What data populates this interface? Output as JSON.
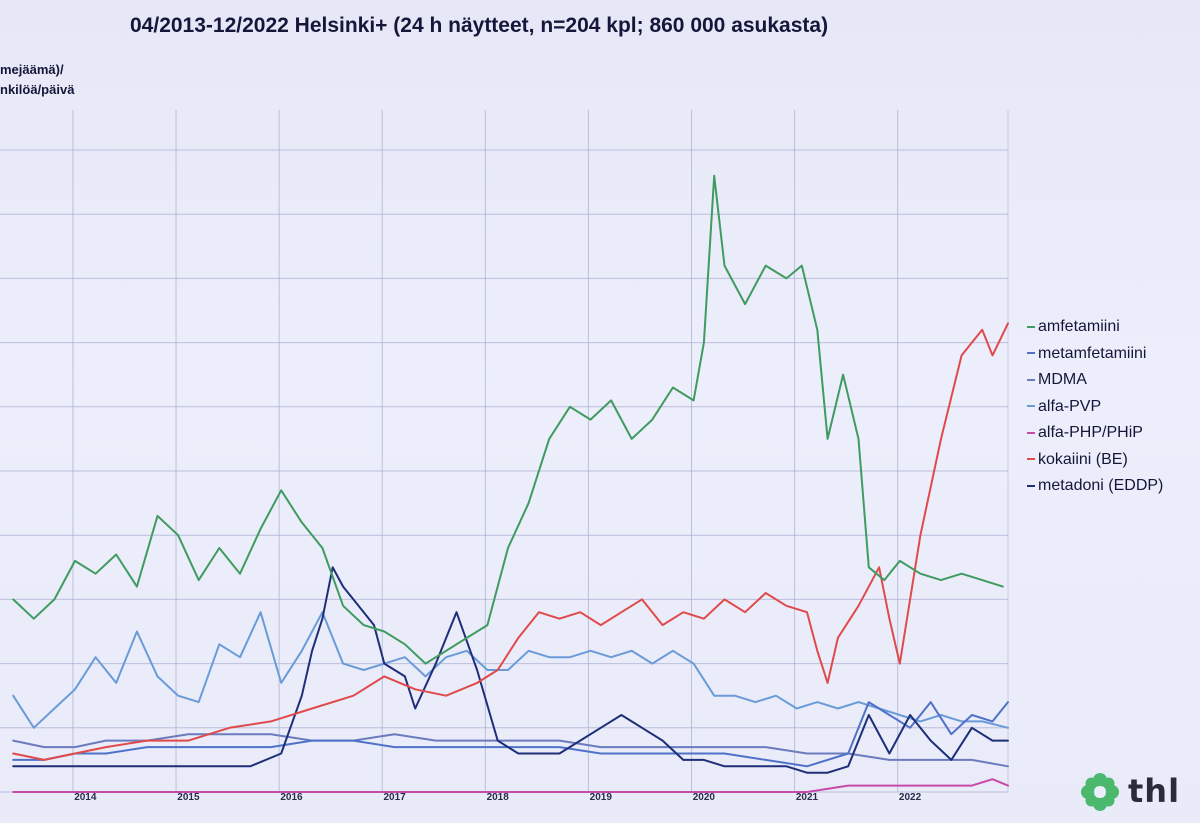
{
  "slide": {
    "title": "04/2013-12/2022 Helsinki+ (24 h näytteet, n=204 kpl; 860 000 asukasta)",
    "ylabel_line1": "mejäämä)/",
    "ylabel_line2": "nkilöä/päivä",
    "logo_text": "thl"
  },
  "colors": {
    "grid": "#a8acd0",
    "amfetamiini": "#3f9b5f",
    "metamfetamiini": "#4f72c8",
    "MDMA": "#6b7bbe",
    "alfa-PVP": "#6a9bd8",
    "alfa-PHP/PHiP": "#c84aa8",
    "kokaiini": "#e04a4a",
    "metadoni": "#1e2e78",
    "logo": "#4bb86e"
  },
  "chart_data": {
    "type": "line",
    "xlim": [
      2013.25,
      2022.95
    ],
    "x_ticks": [
      {
        "year": 2014,
        "label": "2014"
      },
      {
        "year": 2015,
        "label": "2015"
      },
      {
        "year": 2016,
        "label": "2016"
      },
      {
        "year": 2017,
        "label": "2017"
      },
      {
        "year": 2018,
        "label": "2018"
      },
      {
        "year": 2019,
        "label": "2019"
      },
      {
        "year": 2020,
        "label": "2020"
      },
      {
        "year": 2021,
        "label": "2021"
      },
      {
        "year": 2022,
        "label": "2022"
      }
    ],
    "grid": true,
    "legend_position": "right",
    "ylim": [
      0,
      100
    ],
    "series": [
      {
        "name": "amfetamiini",
        "color": "#3f9b5f",
        "points": [
          [
            2013.3,
            30
          ],
          [
            2013.5,
            27
          ],
          [
            2013.7,
            30
          ],
          [
            2013.9,
            36
          ],
          [
            2014.1,
            34
          ],
          [
            2014.3,
            37
          ],
          [
            2014.5,
            32
          ],
          [
            2014.7,
            43
          ],
          [
            2014.9,
            40
          ],
          [
            2015.1,
            33
          ],
          [
            2015.3,
            38
          ],
          [
            2015.5,
            34
          ],
          [
            2015.7,
            41
          ],
          [
            2015.9,
            47
          ],
          [
            2016.1,
            42
          ],
          [
            2016.3,
            38
          ],
          [
            2016.5,
            29
          ],
          [
            2016.7,
            26
          ],
          [
            2016.9,
            25
          ],
          [
            2017.1,
            23
          ],
          [
            2017.3,
            20
          ],
          [
            2017.5,
            22
          ],
          [
            2017.7,
            24
          ],
          [
            2017.9,
            26
          ],
          [
            2018.1,
            38
          ],
          [
            2018.3,
            45
          ],
          [
            2018.5,
            55
          ],
          [
            2018.7,
            60
          ],
          [
            2018.9,
            58
          ],
          [
            2019.1,
            61
          ],
          [
            2019.3,
            55
          ],
          [
            2019.5,
            58
          ],
          [
            2019.7,
            63
          ],
          [
            2019.9,
            61
          ],
          [
            2020.0,
            70
          ],
          [
            2020.1,
            96
          ],
          [
            2020.2,
            82
          ],
          [
            2020.4,
            76
          ],
          [
            2020.6,
            82
          ],
          [
            2020.8,
            80
          ],
          [
            2020.95,
            82
          ],
          [
            2021.1,
            72
          ],
          [
            2021.2,
            55
          ],
          [
            2021.35,
            65
          ],
          [
            2021.5,
            55
          ],
          [
            2021.6,
            35
          ],
          [
            2021.75,
            33
          ],
          [
            2021.9,
            36
          ],
          [
            2022.1,
            34
          ],
          [
            2022.3,
            33
          ],
          [
            2022.5,
            34
          ],
          [
            2022.7,
            33
          ],
          [
            2022.9,
            32
          ]
        ]
      },
      {
        "name": "metamfetamiini",
        "color": "#4f72c8",
        "points": [
          [
            2013.3,
            5
          ],
          [
            2013.6,
            5
          ],
          [
            2013.9,
            6
          ],
          [
            2014.2,
            6
          ],
          [
            2014.6,
            7
          ],
          [
            2015.0,
            7
          ],
          [
            2015.4,
            7
          ],
          [
            2015.8,
            7
          ],
          [
            2016.2,
            8
          ],
          [
            2016.6,
            8
          ],
          [
            2017.0,
            7
          ],
          [
            2017.4,
            7
          ],
          [
            2017.8,
            7
          ],
          [
            2018.2,
            7
          ],
          [
            2018.6,
            7
          ],
          [
            2019.0,
            6
          ],
          [
            2019.4,
            6
          ],
          [
            2019.8,
            6
          ],
          [
            2020.2,
            6
          ],
          [
            2020.6,
            5
          ],
          [
            2021.0,
            4
          ],
          [
            2021.4,
            6
          ],
          [
            2021.6,
            14
          ],
          [
            2021.8,
            12
          ],
          [
            2022.0,
            10
          ],
          [
            2022.2,
            14
          ],
          [
            2022.4,
            9
          ],
          [
            2022.6,
            12
          ],
          [
            2022.8,
            11
          ],
          [
            2022.95,
            14
          ]
        ]
      },
      {
        "name": "MDMA",
        "color": "#6b7bbe",
        "points": [
          [
            2013.3,
            8
          ],
          [
            2013.6,
            7
          ],
          [
            2013.9,
            7
          ],
          [
            2014.2,
            8
          ],
          [
            2014.6,
            8
          ],
          [
            2015.0,
            9
          ],
          [
            2015.4,
            9
          ],
          [
            2015.8,
            9
          ],
          [
            2016.2,
            8
          ],
          [
            2016.6,
            8
          ],
          [
            2017.0,
            9
          ],
          [
            2017.4,
            8
          ],
          [
            2017.8,
            8
          ],
          [
            2018.2,
            8
          ],
          [
            2018.6,
            8
          ],
          [
            2019.0,
            7
          ],
          [
            2019.4,
            7
          ],
          [
            2019.8,
            7
          ],
          [
            2020.2,
            7
          ],
          [
            2020.6,
            7
          ],
          [
            2021.0,
            6
          ],
          [
            2021.4,
            6
          ],
          [
            2021.8,
            5
          ],
          [
            2022.2,
            5
          ],
          [
            2022.6,
            5
          ],
          [
            2022.95,
            4
          ]
        ]
      },
      {
        "name": "alfa-PVP",
        "color": "#6a9bd8",
        "points": [
          [
            2013.3,
            15
          ],
          [
            2013.5,
            10
          ],
          [
            2013.7,
            13
          ],
          [
            2013.9,
            16
          ],
          [
            2014.1,
            21
          ],
          [
            2014.3,
            17
          ],
          [
            2014.5,
            25
          ],
          [
            2014.7,
            18
          ],
          [
            2014.9,
            15
          ],
          [
            2015.1,
            14
          ],
          [
            2015.3,
            23
          ],
          [
            2015.5,
            21
          ],
          [
            2015.7,
            28
          ],
          [
            2015.9,
            17
          ],
          [
            2016.1,
            22
          ],
          [
            2016.3,
            28
          ],
          [
            2016.5,
            20
          ],
          [
            2016.7,
            19
          ],
          [
            2016.9,
            20
          ],
          [
            2017.1,
            21
          ],
          [
            2017.3,
            18
          ],
          [
            2017.5,
            21
          ],
          [
            2017.7,
            22
          ],
          [
            2017.9,
            19
          ],
          [
            2018.1,
            19
          ],
          [
            2018.3,
            22
          ],
          [
            2018.5,
            21
          ],
          [
            2018.7,
            21
          ],
          [
            2018.9,
            22
          ],
          [
            2019.1,
            21
          ],
          [
            2019.3,
            22
          ],
          [
            2019.5,
            20
          ],
          [
            2019.7,
            22
          ],
          [
            2019.9,
            20
          ],
          [
            2020.1,
            15
          ],
          [
            2020.3,
            15
          ],
          [
            2020.5,
            14
          ],
          [
            2020.7,
            15
          ],
          [
            2020.9,
            13
          ],
          [
            2021.1,
            14
          ],
          [
            2021.3,
            13
          ],
          [
            2021.5,
            14
          ],
          [
            2021.7,
            13
          ],
          [
            2021.9,
            12
          ],
          [
            2022.1,
            11
          ],
          [
            2022.3,
            12
          ],
          [
            2022.5,
            11
          ],
          [
            2022.7,
            11
          ],
          [
            2022.95,
            10
          ]
        ]
      },
      {
        "name": "alfa-PHP/PHiP",
        "color": "#c84aa8",
        "points": [
          [
            2013.3,
            0
          ],
          [
            2020.0,
            0
          ],
          [
            2021.0,
            0
          ],
          [
            2021.4,
            1
          ],
          [
            2021.6,
            1
          ],
          [
            2021.8,
            1
          ],
          [
            2022.0,
            1
          ],
          [
            2022.2,
            1
          ],
          [
            2022.4,
            1
          ],
          [
            2022.6,
            1
          ],
          [
            2022.8,
            2
          ],
          [
            2022.95,
            1
          ]
        ]
      },
      {
        "name": "kokaiini (BE)",
        "color": "#e04a4a",
        "points": [
          [
            2013.3,
            6
          ],
          [
            2013.6,
            5
          ],
          [
            2013.9,
            6
          ],
          [
            2014.2,
            7
          ],
          [
            2014.6,
            8
          ],
          [
            2015.0,
            8
          ],
          [
            2015.4,
            10
          ],
          [
            2015.8,
            11
          ],
          [
            2016.2,
            13
          ],
          [
            2016.6,
            15
          ],
          [
            2016.9,
            18
          ],
          [
            2017.2,
            16
          ],
          [
            2017.5,
            15
          ],
          [
            2017.8,
            17
          ],
          [
            2018.0,
            19
          ],
          [
            2018.2,
            24
          ],
          [
            2018.4,
            28
          ],
          [
            2018.6,
            27
          ],
          [
            2018.8,
            28
          ],
          [
            2019.0,
            26
          ],
          [
            2019.2,
            28
          ],
          [
            2019.4,
            30
          ],
          [
            2019.6,
            26
          ],
          [
            2019.8,
            28
          ],
          [
            2020.0,
            27
          ],
          [
            2020.2,
            30
          ],
          [
            2020.4,
            28
          ],
          [
            2020.6,
            31
          ],
          [
            2020.8,
            29
          ],
          [
            2021.0,
            28
          ],
          [
            2021.1,
            22
          ],
          [
            2021.2,
            17
          ],
          [
            2021.3,
            24
          ],
          [
            2021.5,
            29
          ],
          [
            2021.7,
            35
          ],
          [
            2021.8,
            27
          ],
          [
            2021.9,
            20
          ],
          [
            2022.0,
            30
          ],
          [
            2022.1,
            40
          ],
          [
            2022.3,
            55
          ],
          [
            2022.5,
            68
          ],
          [
            2022.7,
            72
          ],
          [
            2022.8,
            68
          ],
          [
            2022.95,
            73
          ]
        ]
      },
      {
        "name": "metadoni (EDDP)",
        "color": "#1e2e78",
        "points": [
          [
            2013.3,
            4
          ],
          [
            2013.6,
            4
          ],
          [
            2013.9,
            4
          ],
          [
            2014.2,
            4
          ],
          [
            2014.5,
            4
          ],
          [
            2014.9,
            4
          ],
          [
            2015.3,
            4
          ],
          [
            2015.6,
            4
          ],
          [
            2015.9,
            6
          ],
          [
            2016.1,
            15
          ],
          [
            2016.2,
            22
          ],
          [
            2016.3,
            27
          ],
          [
            2016.4,
            35
          ],
          [
            2016.5,
            32
          ],
          [
            2016.6,
            30
          ],
          [
            2016.8,
            26
          ],
          [
            2016.9,
            20
          ],
          [
            2017.1,
            18
          ],
          [
            2017.2,
            13
          ],
          [
            2017.4,
            20
          ],
          [
            2017.6,
            28
          ],
          [
            2017.8,
            19
          ],
          [
            2018.0,
            8
          ],
          [
            2018.2,
            6
          ],
          [
            2018.4,
            6
          ],
          [
            2018.6,
            6
          ],
          [
            2018.8,
            8
          ],
          [
            2019.0,
            10
          ],
          [
            2019.2,
            12
          ],
          [
            2019.4,
            10
          ],
          [
            2019.6,
            8
          ],
          [
            2019.8,
            5
          ],
          [
            2020.0,
            5
          ],
          [
            2020.2,
            4
          ],
          [
            2020.4,
            4
          ],
          [
            2020.6,
            4
          ],
          [
            2020.8,
            4
          ],
          [
            2021.0,
            3
          ],
          [
            2021.2,
            3
          ],
          [
            2021.4,
            4
          ],
          [
            2021.5,
            8
          ],
          [
            2021.6,
            12
          ],
          [
            2021.8,
            6
          ],
          [
            2022.0,
            12
          ],
          [
            2022.2,
            8
          ],
          [
            2022.4,
            5
          ],
          [
            2022.6,
            10
          ],
          [
            2022.8,
            8
          ],
          [
            2022.95,
            8
          ]
        ]
      }
    ]
  },
  "legend": {
    "items": [
      {
        "label": "amfetamiini",
        "color": "#3f9b5f"
      },
      {
        "label": "metamfetamiini",
        "color": "#4f72c8"
      },
      {
        "label": "MDMA",
        "color": "#6b7bbe"
      },
      {
        "label": "alfa-PVP",
        "color": "#6a9bd8"
      },
      {
        "label": "alfa-PHP/PHiP",
        "color": "#c84aa8"
      },
      {
        "label": "kokaiini (BE)",
        "color": "#e04a4a"
      },
      {
        "label": "metadoni (EDDP)",
        "color": "#1e2e78"
      }
    ]
  }
}
